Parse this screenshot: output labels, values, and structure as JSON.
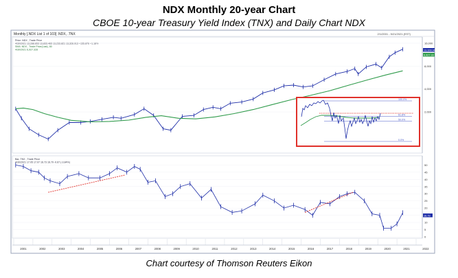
{
  "header": {
    "title": "NDX Monthly 20-year Chart",
    "subtitle": "CBOE 10-year Treasury Yield Index (TNX) and Daily Chart NDX"
  },
  "footer": {
    "caption": "Chart courtesy of Thomson Reuters Eikon"
  },
  "chart_data": {
    "type": "line",
    "panel_header_left": "Monthly [.NDX List 1 of 103] .NDX, .TNX",
    "panel_header_right": "2/1/2001 - 5/21/2021 (EST)",
    "top_panel": {
      "legend": [
        "Price .NDX , Trade Price",
        "4/30/2021 13,288.853 13,833.465 13,233.821 13,328.913 +155.876 +1.18%",
        "SMA .NDX , Trade Price(Last), 80",
        "4/30/2021 6,927.328"
      ],
      "scale": "log",
      "y_ticks": [
        "16,000",
        "8,000",
        "4,000",
        "2,000"
      ],
      "ylim": [
        600,
        17000
      ],
      "current_price_label": "13,328.91",
      "current_sma_label": "6,927.33",
      "series": [
        {
          "name": "Price",
          "color": "#1f2fa8",
          "x": [
            2001.1,
            2001.4,
            2001.8,
            2002.3,
            2002.8,
            2003.3,
            2003.9,
            2004.5,
            2005.0,
            2005.6,
            2006.2,
            2006.6,
            2007.3,
            2007.8,
            2008.3,
            2008.8,
            2009.2,
            2009.8,
            2010.4,
            2010.9,
            2011.4,
            2011.8,
            2012.3,
            2012.9,
            2013.5,
            2014.0,
            2014.6,
            2015.1,
            2015.6,
            2016.1,
            2016.6,
            2017.2,
            2017.8,
            2018.4,
            2018.8,
            2018.98,
            2019.4,
            2019.9,
            2020.2,
            2020.6,
            2020.9,
            2021.3
          ],
          "values": [
            2200,
            1650,
            1200,
            1000,
            880,
            1150,
            1450,
            1450,
            1500,
            1600,
            1700,
            1650,
            1850,
            2200,
            1800,
            1200,
            1150,
            1750,
            1800,
            2150,
            2300,
            2200,
            2600,
            2700,
            2950,
            3550,
            3900,
            4400,
            4500,
            4250,
            4400,
            5300,
            6300,
            6800,
            7400,
            6300,
            7800,
            8500,
            7600,
            10600,
            12000,
            13330
          ]
        },
        {
          "name": "SMA",
          "color": "#2e9a4a",
          "x": [
            2001.1,
            2001.5,
            2002.0,
            2002.6,
            2003.3,
            2004.0,
            2005.0,
            2006.0,
            2007.0,
            2007.9,
            2008.7,
            2009.6,
            2010.5,
            2011.5,
            2012.5,
            2013.5,
            2014.5,
            2015.5,
            2016.5,
            2017.5,
            2018.5,
            2019.5,
            2020.4,
            2021.3
          ],
          "values": [
            2200,
            2250,
            2150,
            1900,
            1700,
            1550,
            1480,
            1500,
            1560,
            1700,
            1780,
            1650,
            1620,
            1720,
            1900,
            2150,
            2500,
            2900,
            3300,
            3800,
            4500,
            5300,
            6100,
            6927
          ]
        }
      ],
      "inset": {
        "fib_labels": [
          "100.0%",
          "61.8%",
          "50.0%",
          "0.0%"
        ],
        "fib_levels": [
          1.0,
          0.618,
          0.5,
          0.0
        ]
      }
    },
    "bottom_panel": {
      "legend": [
        "Bar,.TNX , Trade Price",
        "4/30/2021 17.05 17.07 16.73 16.79 -0.67 (-3.84%)"
      ],
      "y_ticks": [
        "50",
        "45",
        "40",
        "35",
        "30",
        "25",
        "20",
        "15",
        "10",
        "5",
        "0"
      ],
      "ylim": [
        0,
        54
      ],
      "current_value_label": "16.79",
      "series": [
        {
          "name": "TNX",
          "color": "#1f2fa8",
          "x": [
            2001.1,
            2001.5,
            2001.9,
            2002.3,
            2002.6,
            2002.9,
            2003.4,
            2003.8,
            2004.4,
            2004.9,
            2005.5,
            2006.0,
            2006.4,
            2006.9,
            2007.3,
            2007.6,
            2008.0,
            2008.4,
            2008.9,
            2009.3,
            2009.7,
            2010.2,
            2010.8,
            2011.3,
            2011.8,
            2012.4,
            2012.9,
            2013.6,
            2014.0,
            2014.6,
            2015.1,
            2015.6,
            2016.2,
            2016.6,
            2017.0,
            2017.5,
            2018.0,
            2018.4,
            2018.8,
            2019.3,
            2019.7,
            2020.1,
            2020.3,
            2020.7,
            2021.0,
            2021.3
          ],
          "values": [
            50,
            49,
            46,
            45,
            41,
            39,
            37,
            42,
            44,
            41,
            41,
            44,
            48,
            45,
            49,
            47,
            38,
            39,
            28,
            30,
            35,
            37,
            27,
            33,
            21,
            17,
            18,
            23,
            29,
            25,
            20,
            22,
            19,
            15,
            24,
            23,
            28,
            30,
            31,
            25,
            16,
            15,
            6,
            6,
            9,
            16.79
          ]
        }
      ],
      "trendlines": [
        {
          "x": [
            2002.8,
            2006.8
          ],
          "values": [
            31,
            43
          ]
        },
        {
          "x": [
            2016.2,
            2018.7
          ],
          "values": [
            17,
            31
          ]
        }
      ]
    },
    "x_year_labels": [
      "2001",
      "2002",
      "2003",
      "2004",
      "2005",
      "2006",
      "2007",
      "2008",
      "2009",
      "2010",
      "2011",
      "2012",
      "2013",
      "2014",
      "2015",
      "2016",
      "2017",
      "2018",
      "2019",
      "2020",
      "2021",
      "2022"
    ],
    "x_range": [
      2001.0,
      2022.0
    ],
    "colors": {
      "price": "#1f2fa8",
      "sma": "#2e9a4a",
      "trendline": "#e0302a",
      "highlight_box": "#e0302a",
      "fib_line": "#4a5bc8"
    }
  }
}
